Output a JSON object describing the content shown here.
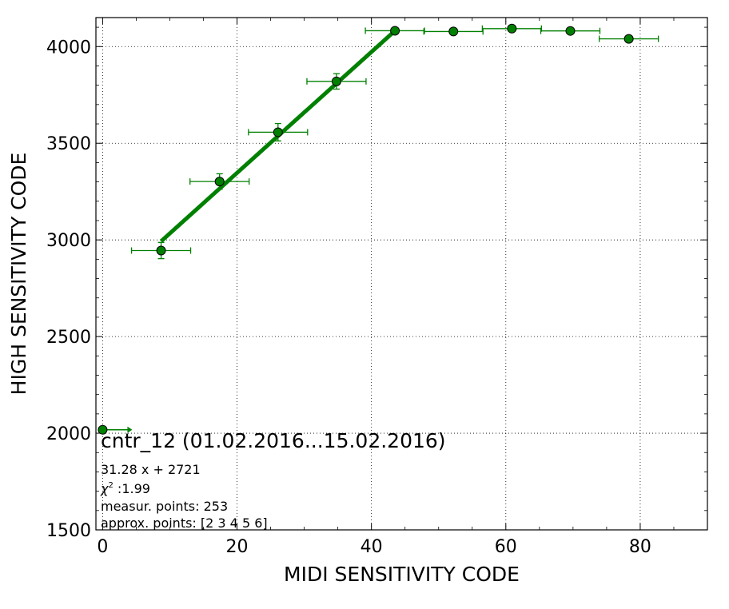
{
  "chart_data": {
    "type": "scatter",
    "xlabel": "MIDI SENSITIVITY CODE",
    "ylabel": "HIGH SENSITIVITY CODE",
    "xlim": [
      -1,
      90
    ],
    "ylim": [
      1500,
      4150
    ],
    "xticks": [
      0,
      20,
      40,
      60,
      80
    ],
    "yticks": [
      1500,
      2000,
      2500,
      3000,
      3500,
      4000
    ],
    "grid": true,
    "color": "#008000",
    "series": [
      {
        "points": [
          {
            "x": 8.7,
            "y": 2945,
            "xerr": 4.4,
            "yerr": 42
          },
          {
            "x": 17.4,
            "y": 3302,
            "xerr": 4.4,
            "yerr": 40
          },
          {
            "x": 26.1,
            "y": 3557,
            "xerr": 4.4,
            "yerr": 45
          },
          {
            "x": 34.8,
            "y": 3820,
            "xerr": 4.4,
            "yerr": 40
          },
          {
            "x": 43.5,
            "y": 4082,
            "xerr": 4.4,
            "yerr": 8
          },
          {
            "x": 52.2,
            "y": 4078,
            "xerr": 4.4,
            "yerr": 8
          },
          {
            "x": 60.9,
            "y": 4093,
            "xerr": 4.4,
            "yerr": 8
          },
          {
            "x": 69.6,
            "y": 4081,
            "xerr": 4.4,
            "yerr": 8
          },
          {
            "x": 78.3,
            "y": 4040,
            "xerr": 4.4,
            "yerr": 8
          }
        ]
      }
    ],
    "edge_point": {
      "x": 0,
      "y": 2018,
      "arrow_to_x": 4.4
    },
    "fit_line": {
      "slope": 31.28,
      "intercept": 2721,
      "x_start": 8.7,
      "x_end": 43.5
    },
    "annotation": {
      "title": "cntr_12 (01.02.2016...15.02.2016)",
      "equation": "31.28 x + 2721",
      "chi2_label": "χ",
      "chi2_sup": "2",
      "chi2_value": " :1.99",
      "measur_points": "measur. points: 253",
      "approx_points": "approx. points: [2 3 4 5 6]"
    }
  }
}
